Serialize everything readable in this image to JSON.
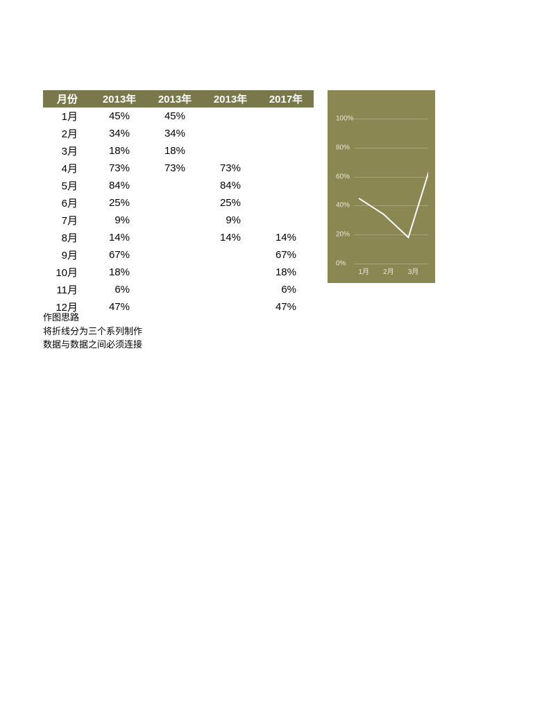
{
  "table": {
    "headers": [
      "月份",
      "2013年",
      "2013年",
      "2013年",
      "2017年"
    ],
    "rows": [
      [
        "1月",
        "45%",
        "45%",
        "",
        ""
      ],
      [
        "2月",
        "34%",
        "34%",
        "",
        ""
      ],
      [
        "3月",
        "18%",
        "18%",
        "",
        ""
      ],
      [
        "4月",
        "73%",
        "73%",
        "73%",
        ""
      ],
      [
        "5月",
        "84%",
        "",
        "84%",
        ""
      ],
      [
        "6月",
        "25%",
        "",
        "25%",
        ""
      ],
      [
        "7月",
        "9%",
        "",
        "9%",
        ""
      ],
      [
        "8月",
        "14%",
        "",
        "14%",
        "14%"
      ],
      [
        "9月",
        "67%",
        "",
        "",
        "67%"
      ],
      [
        "10月",
        "18%",
        "",
        "",
        "18%"
      ],
      [
        "11月",
        "6%",
        "",
        "",
        "6%"
      ],
      [
        "12月",
        "47%",
        "",
        "",
        "47%"
      ]
    ],
    "header_bg": "#78784a",
    "header_fg": "#ffffff",
    "cell_fg": "#000000",
    "fontsize": 15
  },
  "chart": {
    "type": "line",
    "background_color": "#8a8752",
    "grid_color": "rgba(255,255,255,0.25)",
    "label_color": "#e8e8d8",
    "label_fontsize": 10,
    "ylim": [
      0,
      110
    ],
    "yticks": [
      0,
      20,
      40,
      60,
      80,
      100
    ],
    "ytick_labels": [
      "0%",
      "20%",
      "40%",
      "60%",
      "80%",
      "100%"
    ],
    "xticks": [
      "1月",
      "2月",
      "3月"
    ],
    "series": [
      {
        "color": "#ffffff",
        "width": 2,
        "points": [
          {
            "x": 0,
            "y": 45
          },
          {
            "x": 1,
            "y": 34
          },
          {
            "x": 2,
            "y": 18
          },
          {
            "x": 3,
            "y": 73
          }
        ]
      }
    ]
  },
  "notes": {
    "lines": [
      "作图思路",
      "将折线分为三个系列制作",
      "数据与数据之间必须连接"
    ],
    "fontsize": 13,
    "color": "#000000"
  }
}
